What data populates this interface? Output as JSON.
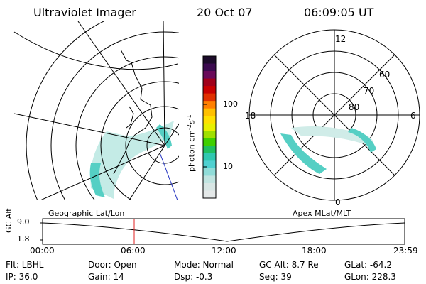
{
  "header": {
    "instrument": "Ultraviolet Imager",
    "date": "20 Oct 07",
    "time": "06:09:05 UT"
  },
  "left_map": {
    "label": "Geographic Lat/Lon"
  },
  "right_map": {
    "label": "Apex MLat/MLT",
    "mlt_labels": {
      "top": "12",
      "left": "18",
      "right": "6",
      "bottom": "0"
    },
    "lat_labels": [
      "60",
      "70",
      "80"
    ]
  },
  "colorbar": {
    "unit_label": "photon cm",
    "unit_exp1": "-2",
    "unit_s": "s",
    "unit_exp2": "-1",
    "ticks": [
      "100",
      "10"
    ],
    "colors": [
      "#1c0b2a",
      "#3b0a4f",
      "#6a0a5a",
      "#a0001a",
      "#c80000",
      "#e03000",
      "#ff8000",
      "#ffc000",
      "#ffe000",
      "#e8f000",
      "#a0e000",
      "#40d000",
      "#20c060",
      "#30c8b0",
      "#50d0d0",
      "#90dcd8",
      "#c0e4e0",
      "#d8e6e4",
      "#e4e8e8"
    ]
  },
  "timeline": {
    "ylabel": "GC Alt",
    "yticks": [
      "9.0",
      "1.8"
    ],
    "xticks": [
      "00:00",
      "06:00",
      "12:00",
      "18:00",
      "23:59"
    ]
  },
  "info": {
    "row1": {
      "filter": "Flt: LBHL",
      "door": "Door: Open",
      "mode": "Mode:  Normal",
      "gc_alt": "GC Alt:  8.7 Re",
      "glat": "GLat:  -64.2"
    },
    "row2": {
      "ip": "IP:  36.0",
      "gain": "Gain:  14",
      "dsp": "Dsp:      -0.3",
      "seq": "Seq:  39",
      "glon": "GLon:  228.3"
    }
  },
  "colors": {
    "aurora": "#4cc8c0",
    "marker": "#e02020",
    "outline": "#000000"
  }
}
